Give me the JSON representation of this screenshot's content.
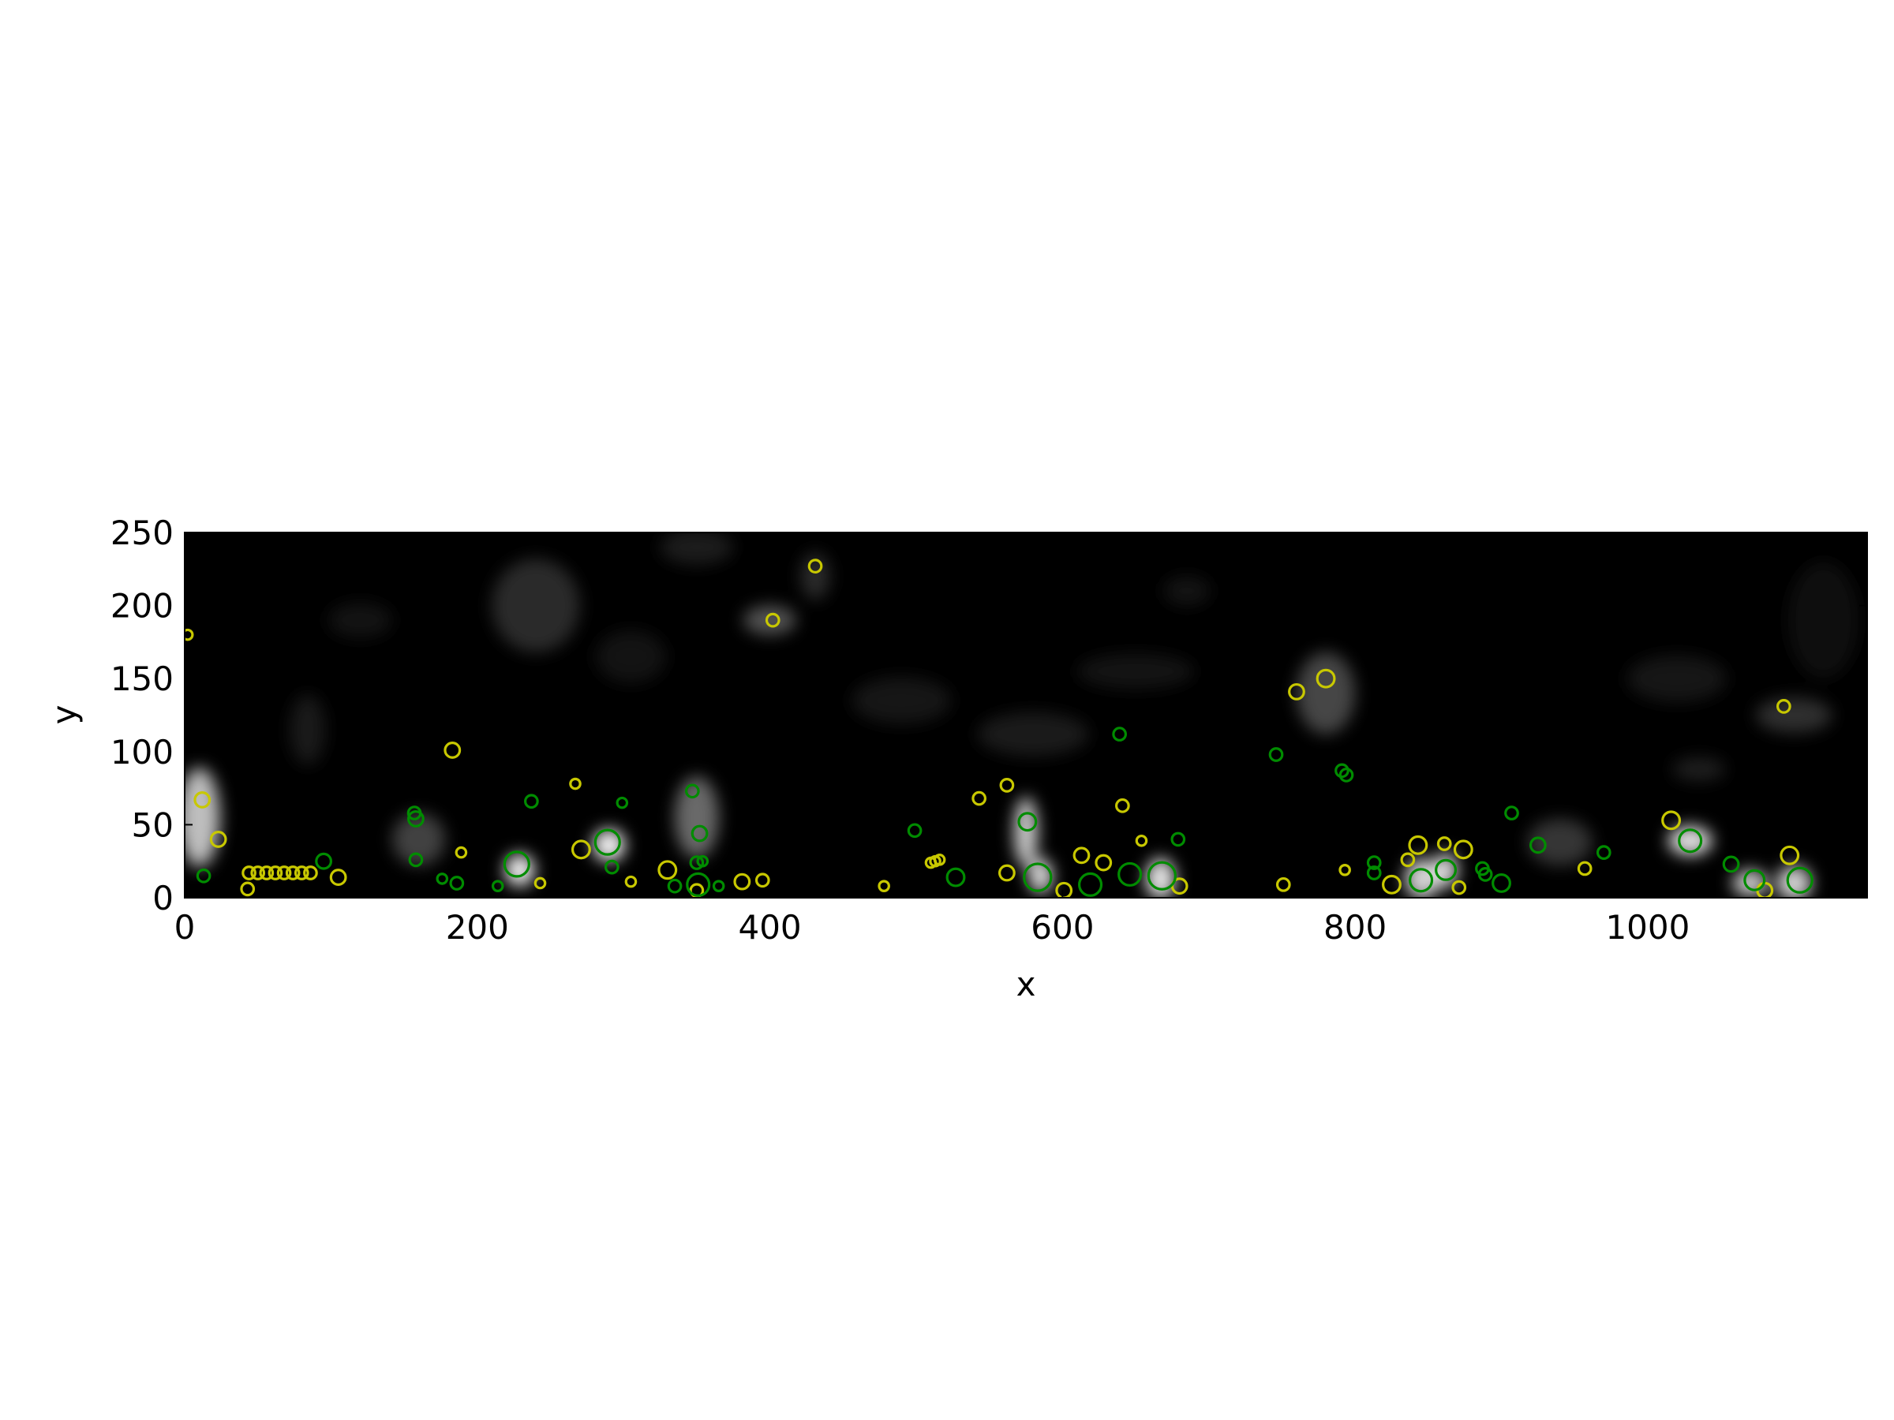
{
  "chart_data": {
    "type": "scatter",
    "xlabel": "x",
    "ylabel": "y",
    "xlim": [
      0,
      1150
    ],
    "ylim": [
      0,
      250
    ],
    "xticks": [
      0,
      200,
      400,
      600,
      800,
      1000
    ],
    "yticks": [
      0,
      50,
      100,
      150,
      200,
      250
    ],
    "grid": false,
    "legend": "none",
    "background": "grayscale field image",
    "series": [
      {
        "color": "#c8c800",
        "marker": "open circle",
        "points": [
          [
            2,
            180,
            4
          ],
          [
            402,
            190,
            5
          ],
          [
            431,
            227,
            5
          ],
          [
            183,
            101,
            6
          ],
          [
            267,
            78,
            4
          ],
          [
            12,
            67,
            6
          ],
          [
            23,
            40,
            6
          ],
          [
            43,
            6,
            5
          ],
          [
            44,
            17,
            5
          ],
          [
            50,
            17,
            5
          ],
          [
            56,
            17,
            5
          ],
          [
            62,
            17,
            5
          ],
          [
            68,
            17,
            5
          ],
          [
            74,
            17,
            5
          ],
          [
            80,
            17,
            5
          ],
          [
            86,
            17,
            5
          ],
          [
            105,
            14,
            6
          ],
          [
            189,
            31,
            4
          ],
          [
            243,
            10,
            4
          ],
          [
            271,
            33,
            7
          ],
          [
            305,
            11,
            4
          ],
          [
            330,
            19,
            7
          ],
          [
            350,
            5,
            5
          ],
          [
            381,
            11,
            6
          ],
          [
            395,
            12,
            5
          ],
          [
            478,
            8,
            4
          ],
          [
            510,
            24,
            4
          ],
          [
            513,
            25,
            4
          ],
          [
            516,
            26,
            4
          ],
          [
            543,
            68,
            5
          ],
          [
            562,
            77,
            5
          ],
          [
            562,
            17,
            6
          ],
          [
            601,
            5,
            6
          ],
          [
            613,
            29,
            6
          ],
          [
            628,
            24,
            6
          ],
          [
            641,
            63,
            5
          ],
          [
            654,
            39,
            4
          ],
          [
            680,
            8,
            6
          ],
          [
            751,
            9,
            5
          ],
          [
            760,
            141,
            6
          ],
          [
            780,
            150,
            7
          ],
          [
            793,
            19,
            4
          ],
          [
            825,
            9,
            7
          ],
          [
            836,
            26,
            5
          ],
          [
            843,
            36,
            7
          ],
          [
            861,
            37,
            5
          ],
          [
            871,
            7,
            5
          ],
          [
            874,
            33,
            7
          ],
          [
            957,
            20,
            5
          ],
          [
            1016,
            53,
            7
          ],
          [
            1093,
            131,
            5
          ],
          [
            1097,
            29,
            7
          ],
          [
            1080,
            5,
            6
          ]
        ]
      },
      {
        "color": "#008c00",
        "marker": "open circle",
        "points": [
          [
            13,
            15,
            5
          ],
          [
            95,
            25,
            6
          ],
          [
            157,
            58,
            5
          ],
          [
            158,
            54,
            6
          ],
          [
            158,
            26,
            5
          ],
          [
            176,
            13,
            4
          ],
          [
            186,
            10,
            5
          ],
          [
            214,
            8,
            4
          ],
          [
            227,
            23,
            10
          ],
          [
            237,
            66,
            5
          ],
          [
            289,
            38,
            10
          ],
          [
            292,
            21,
            5
          ],
          [
            299,
            65,
            4
          ],
          [
            335,
            8,
            5
          ],
          [
            347,
            73,
            5
          ],
          [
            351,
            9,
            9
          ],
          [
            350,
            24,
            5
          ],
          [
            352,
            44,
            6
          ],
          [
            354,
            25,
            4
          ],
          [
            365,
            8,
            4
          ],
          [
            499,
            46,
            5
          ],
          [
            527,
            14,
            7
          ],
          [
            576,
            52,
            7
          ],
          [
            583,
            14,
            11
          ],
          [
            619,
            9,
            9
          ],
          [
            639,
            112,
            5
          ],
          [
            646,
            16,
            9
          ],
          [
            668,
            15,
            11
          ],
          [
            679,
            40,
            5
          ],
          [
            746,
            98,
            5
          ],
          [
            791,
            87,
            5
          ],
          [
            794,
            84,
            5
          ],
          [
            813,
            24,
            5
          ],
          [
            813,
            17,
            5
          ],
          [
            845,
            12,
            9
          ],
          [
            862,
            19,
            8
          ],
          [
            887,
            20,
            5
          ],
          [
            889,
            16,
            5
          ],
          [
            900,
            10,
            7
          ],
          [
            907,
            58,
            5
          ],
          [
            925,
            36,
            6
          ],
          [
            970,
            31,
            5
          ],
          [
            1029,
            39,
            9
          ],
          [
            1057,
            23,
            6
          ],
          [
            1073,
            12,
            8
          ],
          [
            1104,
            12,
            10
          ]
        ]
      }
    ]
  }
}
